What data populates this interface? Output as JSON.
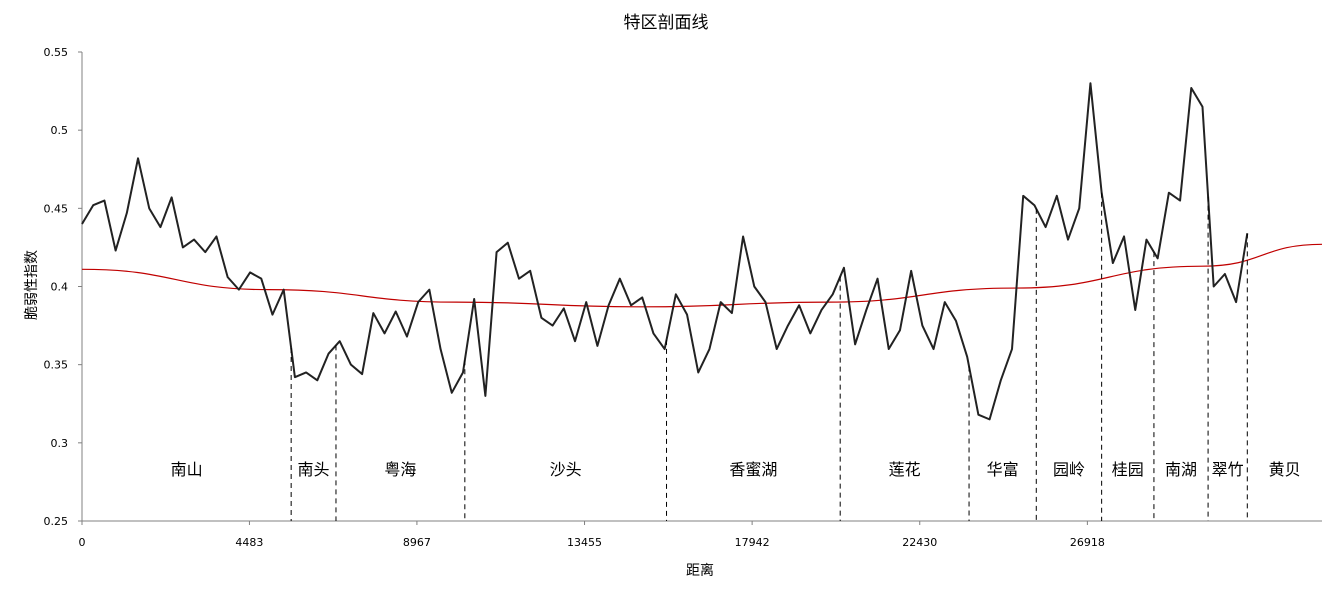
{
  "chart_data": {
    "type": "line",
    "title": "特区剖面线",
    "xlabel": "距离",
    "ylabel": "脆弱性指数",
    "xlim": [
      0,
      33200
    ],
    "ylim": [
      0.25,
      0.55
    ],
    "x_ticks": [
      0,
      4483,
      8967,
      13455,
      17942,
      22430,
      26918
    ],
    "y_ticks": [
      "0.25",
      "0.3",
      "0.35",
      "0.4",
      "0.45",
      "0.5",
      "0.55"
    ],
    "grid": false,
    "legend": "none",
    "colors": {
      "profile": "#222222",
      "trend": "#c00000",
      "divider": "#000000"
    },
    "series": [
      {
        "values_note": "",
        "x": [
          0,
          300,
          600,
          900,
          1200,
          1500,
          1800,
          2100,
          2400,
          2700,
          3000,
          3300,
          3600,
          3900,
          4200,
          4500,
          4800,
          5100,
          5400,
          5700,
          6000,
          6300,
          6600,
          6900,
          7200,
          7500,
          7800,
          8100,
          8400,
          8700,
          9000,
          9300,
          9600,
          9900,
          10200,
          10500,
          10800,
          11100,
          11400,
          11700,
          12000,
          12300,
          12600,
          12900,
          13200,
          13500,
          13800,
          14100,
          14400,
          14700,
          15000,
          15300,
          15600,
          15900,
          16200,
          16500,
          16800,
          17100,
          17400,
          17700,
          18000,
          18300,
          18600,
          18900,
          19200,
          19500,
          19800,
          20100,
          20400,
          20700,
          21000,
          21300,
          21600,
          21900,
          22200,
          22500,
          22800,
          23100,
          23400,
          23700,
          24000,
          24300,
          24600,
          24900,
          25200,
          25500,
          25800,
          26100,
          26400,
          26700,
          27000,
          27300,
          27600,
          27900,
          28200,
          28500,
          28800,
          29100,
          29400,
          29700,
          30000,
          30300,
          30600,
          30900,
          31200
        ],
        "y": [
          0.44,
          0.452,
          0.455,
          0.423,
          0.447,
          0.482,
          0.45,
          0.438,
          0.457,
          0.425,
          0.43,
          0.422,
          0.432,
          0.406,
          0.398,
          0.409,
          0.405,
          0.382,
          0.398,
          0.342,
          0.345,
          0.34,
          0.357,
          0.365,
          0.35,
          0.344,
          0.383,
          0.37,
          0.384,
          0.368,
          0.39,
          0.398,
          0.36,
          0.332,
          0.345,
          0.392,
          0.33,
          0.422,
          0.428,
          0.405,
          0.41,
          0.38,
          0.375,
          0.386,
          0.365,
          0.39,
          0.362,
          0.388,
          0.405,
          0.388,
          0.393,
          0.37,
          0.36,
          0.395,
          0.382,
          0.345,
          0.36,
          0.39,
          0.383,
          0.432,
          0.4,
          0.39,
          0.36,
          0.375,
          0.388,
          0.37,
          0.385,
          0.395,
          0.412,
          0.363,
          0.385,
          0.405,
          0.36,
          0.372,
          0.41,
          0.375,
          0.36,
          0.39,
          0.378,
          0.355,
          0.318,
          0.315,
          0.34,
          0.36,
          0.458,
          0.452,
          0.438,
          0.458,
          0.43,
          0.45,
          0.53,
          0.46,
          0.415,
          0.432,
          0.385,
          0.43,
          0.418,
          0.46,
          0.455,
          0.527,
          0.515,
          0.4,
          0.408,
          0.39,
          0.434
        ]
      }
    ],
    "trend": {
      "x": [
        0,
        5000,
        10000,
        15000,
        20000,
        25000,
        30000,
        33200
      ],
      "y": [
        0.411,
        0.398,
        0.39,
        0.387,
        0.39,
        0.399,
        0.413,
        0.427
      ]
    },
    "region_labels": [
      "南山",
      "南头",
      "粤海",
      "沙头",
      "香蜜湖",
      "莲花",
      "华富",
      "园岭",
      "桂园",
      "南湖",
      "翠竹",
      "黄贝"
    ],
    "divider_x": [
      5600,
      6800,
      10250,
      15650,
      20300,
      23750,
      25550,
      27300,
      28700,
      30150,
      31200
    ]
  }
}
